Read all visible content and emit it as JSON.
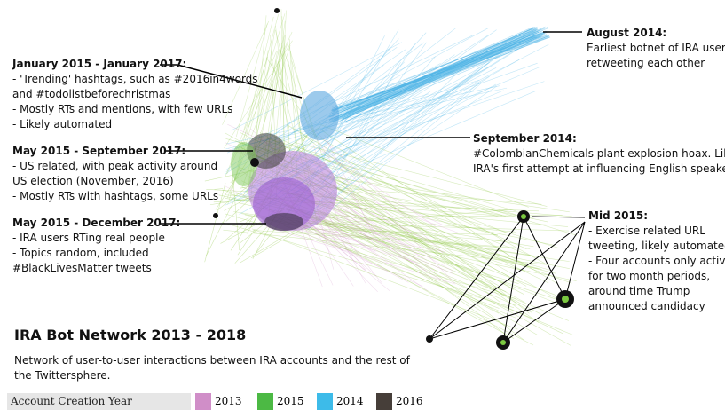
{
  "title": "IRA Bot Network 2013 - 2018",
  "subtitle": "Network of user-to-user interactions between IRA accounts and the rest of the Twittersphere.",
  "annotations": [
    {
      "heading": "January 2015 - January 2017:",
      "lines": [
        "- 'Trending' hashtags, such as #2016in4words",
        "and #todolistbeforechristmas",
        "- Mostly RTs and mentions, with few URLs",
        "- Likely automated"
      ]
    },
    {
      "heading": "May 2015 - September 2017:",
      "lines": [
        "- US related, with peak activity around",
        "US election (November, 2016)",
        "- Mostly RTs with hashtags, some URLs"
      ]
    },
    {
      "heading": "May 2015 - December 2017:",
      "lines": [
        "- IRA users RTing real people",
        "- Topics random, included",
        "#BlackLivesMatter tweets"
      ]
    },
    {
      "heading": "August 2014:",
      "lines": [
        "Earliest botnet of IRA users",
        "retweeting each other"
      ]
    },
    {
      "heading": "September 2014:",
      "lines": [
        "#ColombianChemicals plant explosion hoax. Likely",
        "IRA's first attempt at influencing English speakers"
      ]
    },
    {
      "heading": "Mid 2015:",
      "lines": [
        "- Exercise related URL",
        "tweeting, likely automated",
        "- Four accounts only active",
        "for two month periods,",
        "around time Trump",
        "announced candidacy"
      ]
    }
  ],
  "legend": {
    "title": "Account Creation Year",
    "items": [
      {
        "label": "2013",
        "color": "#d08ec8"
      },
      {
        "label": "2015",
        "color": "#4cb944"
      },
      {
        "label": "2014",
        "color": "#3dbbe9"
      },
      {
        "label": "2016",
        "color": "#463e39"
      }
    ]
  }
}
